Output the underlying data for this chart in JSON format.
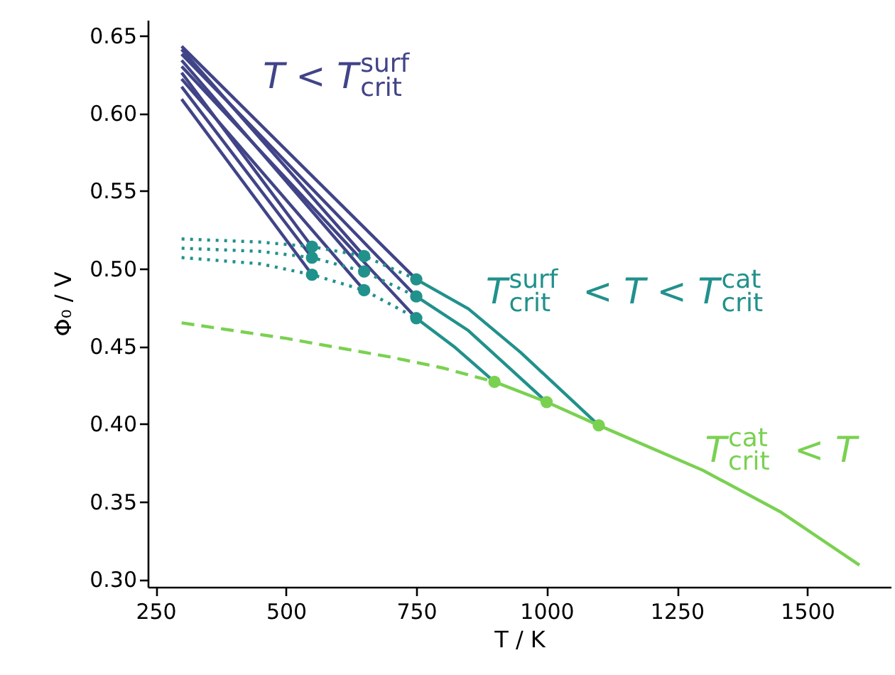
{
  "chart_data": {
    "type": "line",
    "xlabel": "T / K",
    "ylabel": "Φ₀ / V",
    "xlim": [
      235,
      1660
    ],
    "ylim": [
      0.295,
      0.66
    ],
    "xticks": [
      250,
      500,
      750,
      1000,
      1250,
      1500
    ],
    "yticks": [
      {
        "value": 0.3,
        "label": "0.30"
      },
      0.35,
      {
        "value": 0.4,
        "label": "0.40"
      },
      0.45,
      {
        "value": 0.5,
        "label": "0.50"
      },
      0.55,
      {
        "value": 0.6,
        "label": "0.60"
      },
      0.65
    ],
    "grid": false,
    "marker": "none",
    "line_style": "solid",
    "annotations": [
      "T < T$_{crit}$$^{surf}$",
      "T$_{crit}$$^{surf}$ < T < T$_{crit}$$^{cat}$",
      "T$_{crit}$$^{cat}$ < T"
    ],
    "series": [
      {
        "color": "#414487",
        "x": [
          300,
          750
        ],
        "values": [
          0.643,
          0.493
        ]
      },
      {
        "color": "#414487",
        "x": [
          300,
          750
        ],
        "values": [
          0.638,
          0.482
        ]
      },
      {
        "color": "#414487",
        "x": [
          300,
          750
        ],
        "values": [
          0.63,
          0.468
        ]
      },
      {
        "color": "#414487",
        "x": [
          300,
          650
        ],
        "values": [
          0.641,
          0.508
        ]
      },
      {
        "color": "#414487",
        "x": [
          300,
          650
        ],
        "values": [
          0.634,
          0.498
        ]
      },
      {
        "color": "#414487",
        "x": [
          300,
          650
        ],
        "values": [
          0.622,
          0.486
        ]
      },
      {
        "color": "#414487",
        "x": [
          300,
          550
        ],
        "values": [
          0.626,
          0.514
        ]
      },
      {
        "color": "#414487",
        "x": [
          300,
          550
        ],
        "values": [
          0.617,
          0.507
        ]
      },
      {
        "color": "#414487",
        "x": [
          300,
          550
        ],
        "values": [
          0.609,
          0.496
        ]
      },
      {
        "color": "#21918c",
        "line_style": "dotted",
        "x": [
          300,
          450,
          550,
          650,
          750
        ],
        "values": [
          0.519,
          0.517,
          0.514,
          0.508,
          0.493
        ]
      },
      {
        "color": "#21918c",
        "line_style": "dotted",
        "x": [
          300,
          450,
          550,
          650,
          750
        ],
        "values": [
          0.513,
          0.511,
          0.507,
          0.498,
          0.482
        ]
      },
      {
        "color": "#21918c",
        "line_style": "dotted",
        "x": [
          300,
          450,
          550,
          650,
          750
        ],
        "values": [
          0.507,
          0.503,
          0.496,
          0.486,
          0.468
        ]
      },
      {
        "color": "#21918c",
        "x": [
          750,
          850,
          950,
          1100
        ],
        "values": [
          0.493,
          0.474,
          0.446,
          0.399
        ]
      },
      {
        "color": "#21918c",
        "x": [
          750,
          850,
          1000
        ],
        "values": [
          0.482,
          0.46,
          0.414
        ]
      },
      {
        "color": "#21918c",
        "x": [
          750,
          825,
          900
        ],
        "values": [
          0.468,
          0.449,
          0.427
        ]
      },
      {
        "color": "#7ad151",
        "line_style": "dashed",
        "x": [
          300,
          500,
          700,
          800,
          900
        ],
        "values": [
          0.465,
          0.455,
          0.443,
          0.436,
          0.427
        ]
      },
      {
        "color": "#7ad151",
        "x": [
          900,
          1000,
          1100,
          1300,
          1450,
          1600
        ],
        "values": [
          0.427,
          0.414,
          0.399,
          0.37,
          0.343,
          0.309
        ]
      },
      {
        "type": "scatter",
        "color": "#21918c",
        "marker": "circle",
        "x": [
          550,
          550,
          550,
          650,
          650,
          650,
          750,
          750,
          750
        ],
        "values": [
          0.514,
          0.507,
          0.496,
          0.508,
          0.498,
          0.486,
          0.493,
          0.482,
          0.468
        ]
      },
      {
        "type": "scatter",
        "color": "#7ad151",
        "marker": "circle",
        "x": [
          900,
          1000,
          1100
        ],
        "values": [
          0.427,
          0.414,
          0.399
        ]
      }
    ]
  }
}
